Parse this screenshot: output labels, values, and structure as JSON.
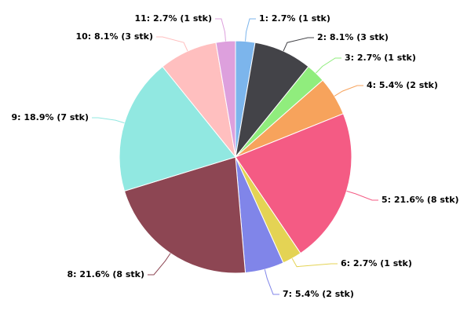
{
  "chart_data": {
    "type": "pie",
    "categories": [
      "1",
      "2",
      "3",
      "4",
      "5",
      "6",
      "7",
      "8",
      "9",
      "10",
      "11"
    ],
    "values": [
      2.7,
      8.1,
      2.7,
      5.4,
      21.6,
      2.7,
      5.4,
      21.6,
      18.9,
      8.1,
      2.7
    ],
    "value_labels": [
      "1: 2.7% (1 stk)",
      "2: 8.1% (3 stk)",
      "3: 2.7% (1 stk)",
      "4: 5.4% (2 stk)",
      "5: 21.6% (8 stk)",
      "6: 2.7% (1 stk)",
      "7: 5.4% (2 stk)",
      "8: 21.6% (8 stk)",
      "9: 18.9% (7 stk)",
      "10: 8.1% (3 stk)",
      "11: 2.7% (1 stk)"
    ],
    "colors": [
      "#7cb5ec",
      "#434348",
      "#90ed7d",
      "#f7a35c",
      "#f45b84",
      "#e4d354",
      "#8085e9",
      "#8d4653",
      "#91e8e1",
      "#ffbfbf",
      "#dda0dd"
    ]
  }
}
